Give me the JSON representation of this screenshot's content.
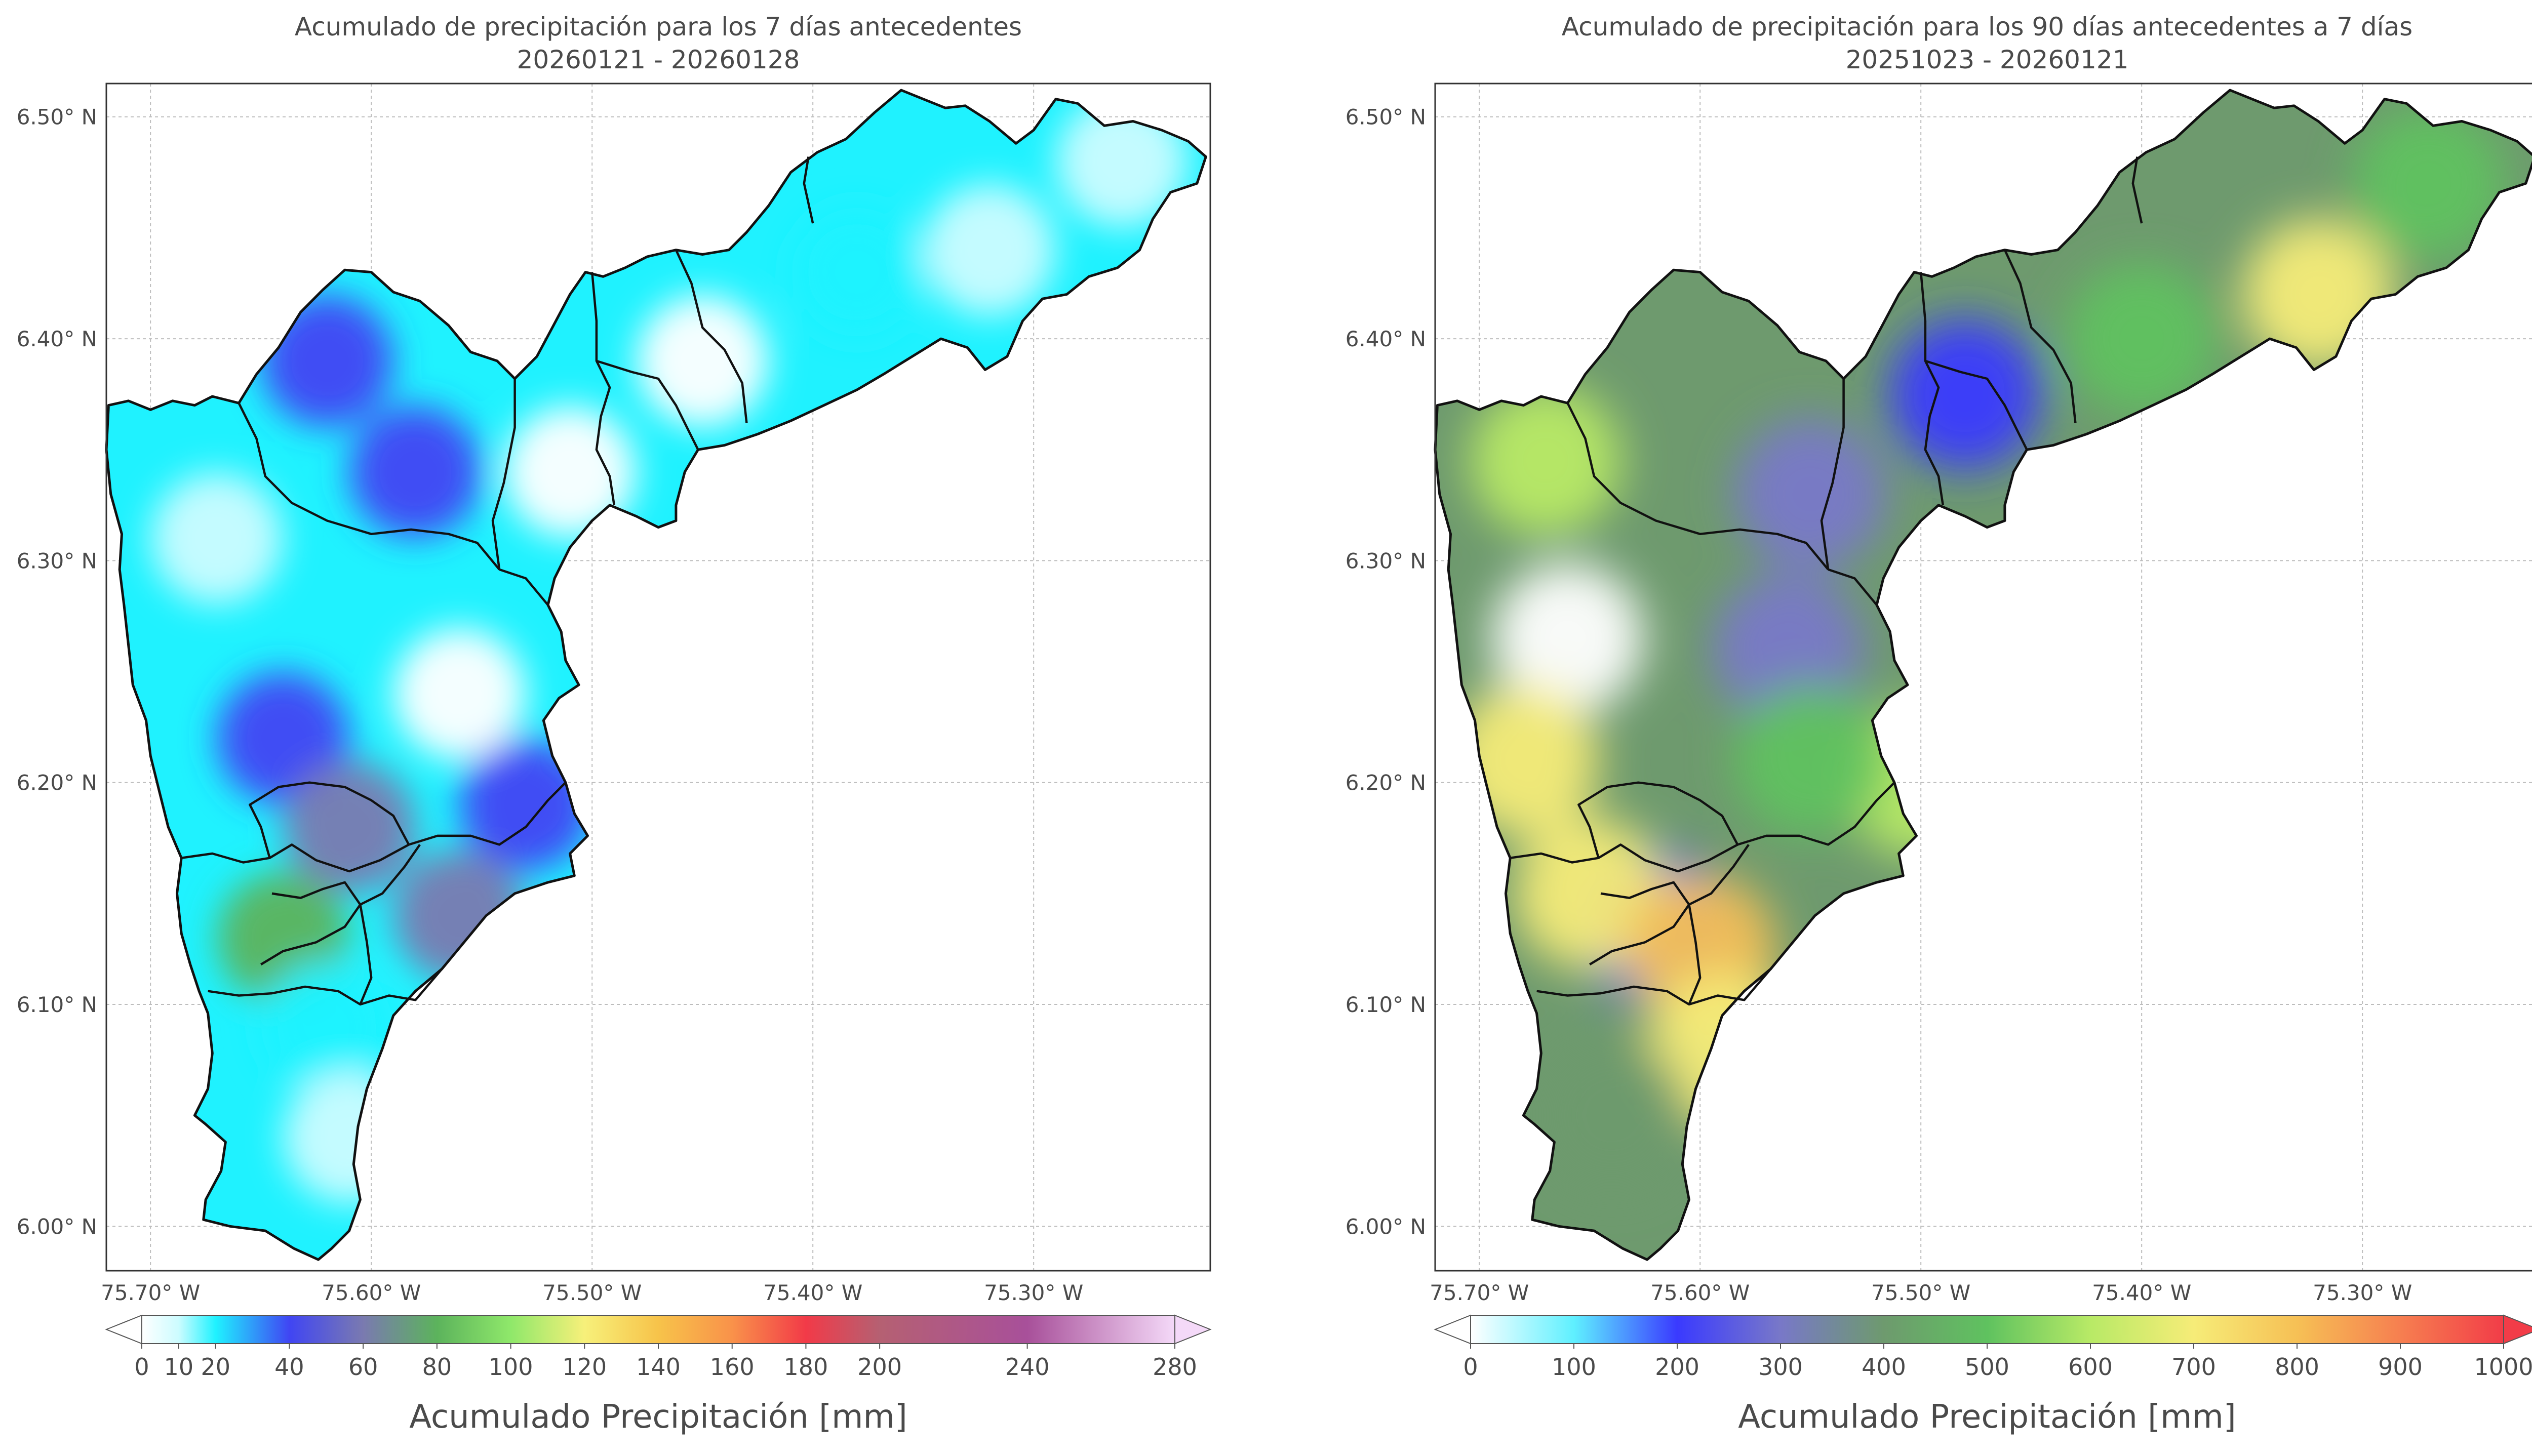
{
  "chart_data": [
    {
      "type": "heatmap",
      "title": "Acumulado de precipitación para los 7 días antecedentes",
      "subtitle": "20260121 - 20260128",
      "xticks": [
        "75.70° W",
        "75.60° W",
        "75.50° W",
        "75.40° W",
        "75.30° W"
      ],
      "yticks": [
        "6.50° N",
        "6.40° N",
        "6.30° N",
        "6.20° N",
        "6.10° N",
        "6.00° N"
      ],
      "xtick_values": [
        -75.7,
        -75.6,
        -75.5,
        -75.4,
        -75.3
      ],
      "ytick_values": [
        6.5,
        6.4,
        6.3,
        6.2,
        6.1,
        6.0
      ],
      "xlim": [
        -75.72,
        -75.22
      ],
      "ylim": [
        5.98,
        6.515
      ],
      "grid": true,
      "colorbar": {
        "label": "Acumulado Precipitación [mm]",
        "ticks": [
          "0",
          "10",
          "20",
          "40",
          "60",
          "80",
          "100",
          "120",
          "140",
          "160",
          "180",
          "200",
          "240",
          "280"
        ],
        "tick_values": [
          0,
          10,
          20,
          40,
          60,
          80,
          100,
          120,
          140,
          160,
          180,
          200,
          240,
          280
        ],
        "bounds": [
          0,
          10,
          20,
          40,
          60,
          80,
          100,
          120,
          140,
          160,
          180,
          200,
          240,
          280
        ],
        "colors": [
          "#ffffff",
          "#ccfcff",
          "#1ff2ff",
          "#4045f3",
          "#7a7ab0",
          "#5cb35c",
          "#8fe86a",
          "#f7f07a",
          "#f7c34a",
          "#f9924a",
          "#f23a48",
          "#b56072",
          "#a8509a",
          "#f4d9f8"
        ],
        "extend": "both"
      },
      "field": [
        {
          "lon": -75.67,
          "lat": 6.31,
          "mm": 10
        },
        {
          "lon": -75.56,
          "lat": 6.24,
          "mm": 2
        },
        {
          "lon": -75.62,
          "lat": 6.39,
          "mm": 40
        },
        {
          "lon": -75.58,
          "lat": 6.34,
          "mm": 45
        },
        {
          "lon": -75.64,
          "lat": 6.22,
          "mm": 40
        },
        {
          "lon": -75.53,
          "lat": 6.19,
          "mm": 45
        },
        {
          "lon": -75.61,
          "lat": 6.18,
          "mm": 75
        },
        {
          "lon": -75.56,
          "lat": 6.14,
          "mm": 75
        },
        {
          "lon": -75.64,
          "lat": 6.13,
          "mm": 80
        },
        {
          "lon": -75.62,
          "lat": 6.09,
          "mm": 35
        },
        {
          "lon": -75.61,
          "lat": 6.04,
          "mm": 15
        },
        {
          "lon": -75.51,
          "lat": 6.34,
          "mm": 8
        },
        {
          "lon": -75.45,
          "lat": 6.39,
          "mm": 2
        },
        {
          "lon": -75.38,
          "lat": 6.43,
          "mm": 25
        },
        {
          "lon": -75.32,
          "lat": 6.44,
          "mm": 12
        },
        {
          "lon": -75.26,
          "lat": 6.48,
          "mm": 18
        }
      ]
    },
    {
      "type": "heatmap",
      "title": "Acumulado de precipitación para los 90 días antecedentes a 7 días",
      "subtitle": "20251023 - 20260121",
      "xticks": [
        "75.70° W",
        "75.60° W",
        "75.50° W",
        "75.40° W",
        "75.30° W"
      ],
      "yticks": [
        "6.50° N",
        "6.40° N",
        "6.30° N",
        "6.20° N",
        "6.10° N",
        "6.00° N"
      ],
      "xtick_values": [
        -75.7,
        -75.6,
        -75.5,
        -75.4,
        -75.3
      ],
      "ytick_values": [
        6.5,
        6.4,
        6.3,
        6.2,
        6.1,
        6.0
      ],
      "xlim": [
        -75.72,
        -75.22
      ],
      "ylim": [
        5.98,
        6.515
      ],
      "grid": true,
      "colorbar": {
        "label": "Acumulado Precipitación [mm]",
        "ticks": [
          "0",
          "100",
          "200",
          "300",
          "400",
          "500",
          "600",
          "700",
          "800",
          "900",
          "1000"
        ],
        "tick_values": [
          0,
          100,
          200,
          300,
          400,
          500,
          600,
          700,
          800,
          900,
          1000
        ],
        "bounds": [
          0,
          100,
          200,
          300,
          400,
          500,
          600,
          700,
          800,
          900,
          1000
        ],
        "colors": [
          "#ffffff",
          "#5ff0ff",
          "#3a3aff",
          "#7878c8",
          "#6e9a6e",
          "#5fc25f",
          "#b8ea66",
          "#f6ec78",
          "#f6c055",
          "#f67f50",
          "#f23c48"
        ],
        "extend": "both"
      },
      "field": [
        {
          "lon": -75.66,
          "lat": 6.265,
          "mm": 60
        },
        {
          "lon": -75.48,
          "lat": 6.375,
          "mm": 250
        },
        {
          "lon": -75.62,
          "lat": 6.135,
          "mm": 250
        },
        {
          "lon": -75.56,
          "lat": 6.26,
          "mm": 380
        },
        {
          "lon": -75.55,
          "lat": 6.33,
          "mm": 390
        },
        {
          "lon": -75.67,
          "lat": 6.345,
          "mm": 680
        },
        {
          "lon": -75.68,
          "lat": 6.21,
          "mm": 770
        },
        {
          "lon": -75.65,
          "lat": 6.15,
          "mm": 730
        },
        {
          "lon": -75.6,
          "lat": 6.125,
          "mm": 850
        },
        {
          "lon": -75.59,
          "lat": 6.08,
          "mm": 720
        },
        {
          "lon": -75.64,
          "lat": 6.05,
          "mm": 420
        },
        {
          "lon": -75.32,
          "lat": 6.42,
          "mm": 730
        },
        {
          "lon": -75.4,
          "lat": 6.4,
          "mm": 520
        },
        {
          "lon": -75.27,
          "lat": 6.47,
          "mm": 520
        },
        {
          "lon": -75.5,
          "lat": 6.2,
          "mm": 620
        },
        {
          "lon": -75.55,
          "lat": 6.21,
          "mm": 520
        }
      ]
    }
  ]
}
